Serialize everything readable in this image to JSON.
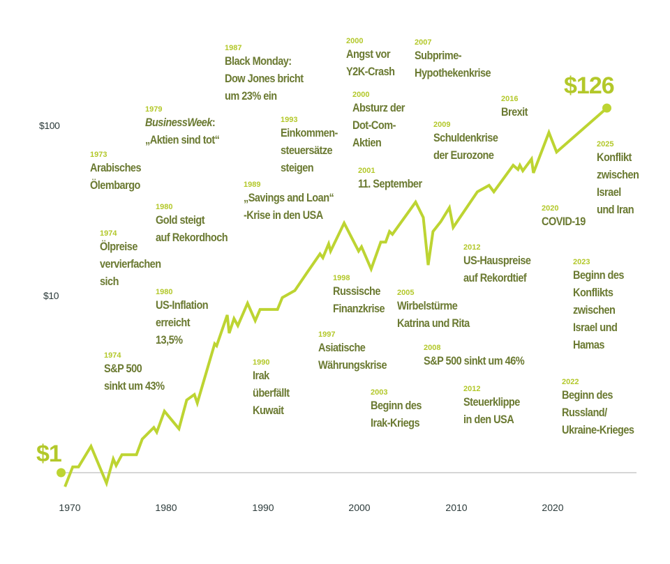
{
  "chart_data": {
    "type": "line",
    "title": "",
    "xlabel": "",
    "ylabel": "",
    "y_scale": "log",
    "ylim": [
      0.8,
      130
    ],
    "xlim": [
      1968.5,
      2026.5
    ],
    "grid": false,
    "line_color": "#bdd432",
    "y_ticks": [
      {
        "value": 10,
        "label": "$10"
      },
      {
        "value": 100,
        "label": "$100"
      }
    ],
    "x_ticks": [
      1970,
      1980,
      1990,
      2000,
      2010,
      2020
    ],
    "start_label": "$1",
    "end_label": "$126",
    "series": [
      {
        "x": [
          1969.1,
          1969.5,
          1970.3,
          1970.9,
          1972.2,
          1973.8,
          1974.5,
          1974.8,
          1975.4,
          1976.9,
          1977.5,
          1978.7,
          1979.0,
          1979.8,
          1981.3,
          1982.1,
          1982.9,
          1983.2,
          1985.0,
          1985.2,
          1986.3,
          1986.5,
          1987.0,
          1987.4,
          1988.4,
          1989.2,
          1989.7,
          1991.5,
          1992.0,
          1993.3,
          1994.6,
          1995.9,
          1996.2,
          1996.8,
          1997.0,
          1998.4,
          1999.9,
          2000.2,
          2001.2,
          2002.2,
          2002.7,
          2003.1,
          2003.4,
          2005.8,
          2006.6,
          2007.1,
          2007.6,
          2008.4,
          2009.3,
          2009.7,
          2012.2,
          2013.4,
          2013.9,
          2015.9,
          2016.4,
          2016.6,
          2016.9,
          2017.8,
          2018.0,
          2019.6,
          2020.4,
          2025.6
        ],
        "y": [
          1.0,
          0.83,
          1.08,
          1.08,
          1.42,
          0.87,
          1.2,
          1.1,
          1.27,
          1.27,
          1.56,
          1.82,
          1.71,
          2.26,
          1.79,
          2.62,
          2.82,
          2.52,
          5.53,
          5.38,
          8.09,
          6.36,
          7.72,
          7.03,
          9.46,
          7.51,
          8.71,
          8.71,
          10.2,
          11.2,
          14.3,
          18.2,
          17.3,
          20.8,
          18.9,
          27.4,
          18.9,
          20.0,
          14.9,
          21.3,
          21.3,
          24.5,
          23.6,
          36.2,
          29.5,
          15.7,
          24.5,
          27.9,
          33.6,
          25.9,
          41.5,
          45.2,
          41.5,
          59.0,
          55.8,
          59.0,
          54.8,
          64.1,
          53.3,
          91.2,
          70.3,
          126
        ]
      }
    ],
    "annotations": [
      {
        "year": "1987",
        "lines": [
          "Black Monday:",
          "Dow Jones bricht",
          "um 23% ein"
        ]
      },
      {
        "year": "1979",
        "lines": [
          "BusinessWeek",
          ":",
          "„Aktien sind tot“"
        ]
      },
      {
        "year": "1973",
        "lines": [
          "Arabisches",
          "Ölembargo"
        ]
      },
      {
        "year": "1980",
        "lines": [
          "Gold steigt",
          "auf Rekordhoch"
        ]
      },
      {
        "year": "1974",
        "lines": [
          "Ölpreise",
          "vervierfachen",
          "sich"
        ]
      },
      {
        "year": "1980",
        "lines": [
          "US-Inflation",
          "erreicht",
          "13,5%"
        ]
      },
      {
        "year": "1974",
        "lines": [
          "S&P 500",
          "sinkt um 43%"
        ]
      },
      {
        "year": "1990",
        "lines": [
          "Irak",
          "überfällt",
          "Kuwait"
        ]
      },
      {
        "year": "1989",
        "lines": [
          "„Savings and Loan“",
          "-Krise in den USA"
        ]
      },
      {
        "year": "1993",
        "lines": [
          "Einkommen-",
          "steuersätze",
          "steigen"
        ]
      },
      {
        "year": "2000",
        "lines": [
          "Angst vor",
          "Y2K-Crash"
        ]
      },
      {
        "year": "2000",
        "lines": [
          "Absturz der",
          "Dot-Com-",
          "Aktien"
        ]
      },
      {
        "year": "2001",
        "lines": [
          "11. September"
        ]
      },
      {
        "year": "2007",
        "lines": [
          "Subprime-",
          "Hypothekenkrise"
        ]
      },
      {
        "year": "2009",
        "lines": [
          "Schuldenkrise",
          "der Eurozone"
        ]
      },
      {
        "year": "2016",
        "lines": [
          "Brexit"
        ]
      },
      {
        "year": "2025",
        "lines": [
          "Konflikt",
          "zwischen",
          "Israel",
          "und Iran"
        ]
      },
      {
        "year": "2020",
        "lines": [
          "COVID-19"
        ]
      },
      {
        "year": "2012",
        "lines": [
          "US-Hauspreise",
          "auf Rekordtief"
        ]
      },
      {
        "year": "2023",
        "lines": [
          "Beginn des",
          "Konflikts",
          "zwischen",
          "Israel und",
          "Hamas"
        ]
      },
      {
        "year": "1998",
        "lines": [
          "Russische",
          "Finanzkrise"
        ]
      },
      {
        "year": "2005",
        "lines": [
          "Wirbelstürme",
          "Katrina und Rita"
        ]
      },
      {
        "year": "1997",
        "lines": [
          "Asiatische",
          "Währungskrise"
        ]
      },
      {
        "year": "2008",
        "lines": [
          "S&P 500 sinkt um 46%"
        ]
      },
      {
        "year": "2003",
        "lines": [
          "Beginn des",
          "Irak-Kriegs"
        ]
      },
      {
        "year": "2012",
        "lines": [
          "Steuerklippe",
          "in den USA"
        ]
      },
      {
        "year": "2022",
        "lines": [
          "Beginn des",
          "Russland/",
          "Ukraine-Krieges"
        ]
      }
    ]
  }
}
